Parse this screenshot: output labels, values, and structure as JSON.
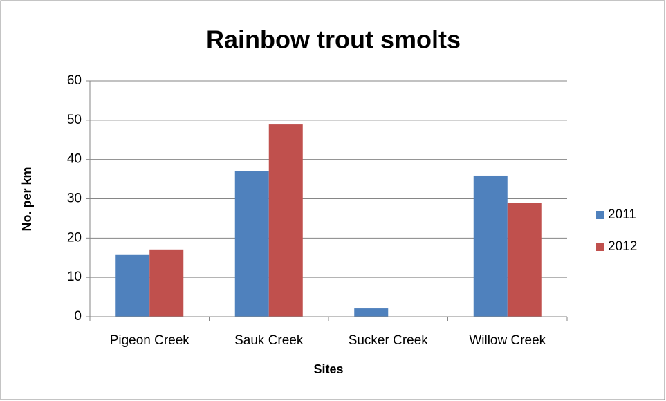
{
  "chart_data": {
    "type": "bar",
    "title": "Rainbow trout smolts",
    "x_label": "Sites",
    "y_label": "No. per km",
    "categories": [
      "Pigeon Creek",
      "Sauk Creek",
      "Sucker Creek",
      "Willow Creek"
    ],
    "series": [
      {
        "name": "2011",
        "color": "#4f81bd",
        "values": [
          15.7,
          37,
          2.1,
          35.9
        ]
      },
      {
        "name": "2012",
        "color": "#c0504d",
        "values": [
          17.1,
          48.9,
          0,
          29
        ]
      }
    ],
    "ylim": [
      0,
      60
    ],
    "yticks": [
      0,
      10,
      20,
      30,
      40,
      50,
      60
    ],
    "grid": true,
    "legend": "right"
  }
}
